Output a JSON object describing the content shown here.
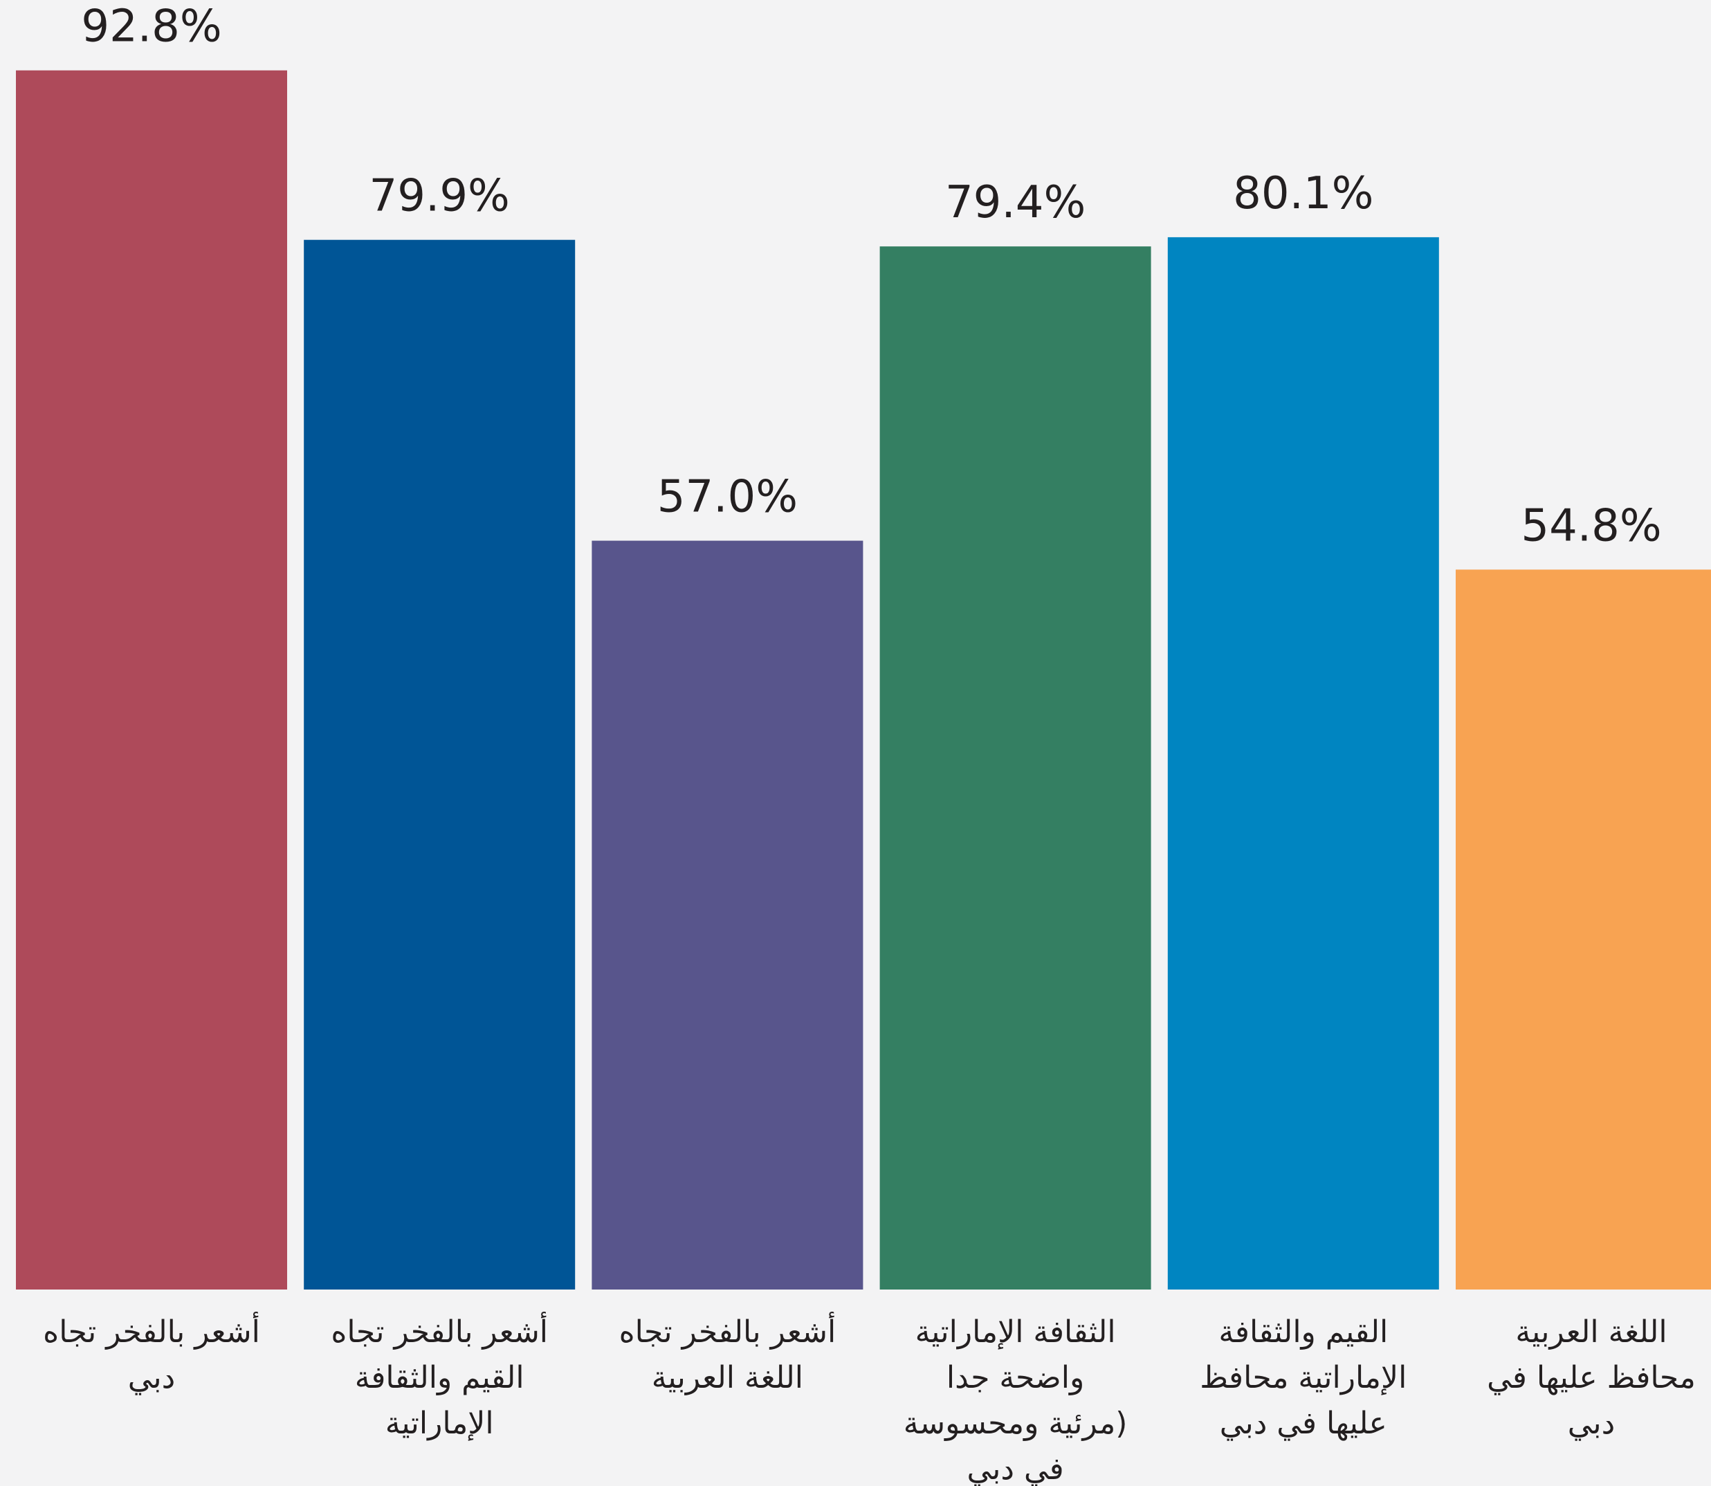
{
  "chart_data": {
    "type": "bar",
    "title": "",
    "xlabel": "",
    "ylabel": "",
    "ylim": [
      0,
      100
    ],
    "grid": false,
    "legend": "none",
    "categories": [
      [
        "أشعر بالفخر تجاه",
        "دبي"
      ],
      [
        "أشعر بالفخر تجاه",
        "القيم والثقافة",
        "الإماراتية"
      ],
      [
        "أشعر بالفخر تجاه",
        "اللغة العربية"
      ],
      [
        "الثقافة الإماراتية",
        "واضحة جدا",
        "(مرئية ومحسوسة",
        "في دبي"
      ],
      [
        "القيم والثقافة",
        "الإماراتية محافظ",
        "عليها في دبي"
      ],
      [
        "اللغة العربية",
        "محافظ عليها في",
        "دبي"
      ]
    ],
    "values": [
      92.8,
      79.9,
      57.0,
      79.4,
      80.1,
      54.8
    ],
    "value_labels": [
      "92.8%",
      "79.9%",
      "57.0%",
      "79.4%",
      "80.1%",
      "54.8%"
    ],
    "colors": [
      "#ae4a5a",
      "#005596",
      "#58558c",
      "#347f62",
      "#0085c1",
      "#f8a352"
    ]
  }
}
